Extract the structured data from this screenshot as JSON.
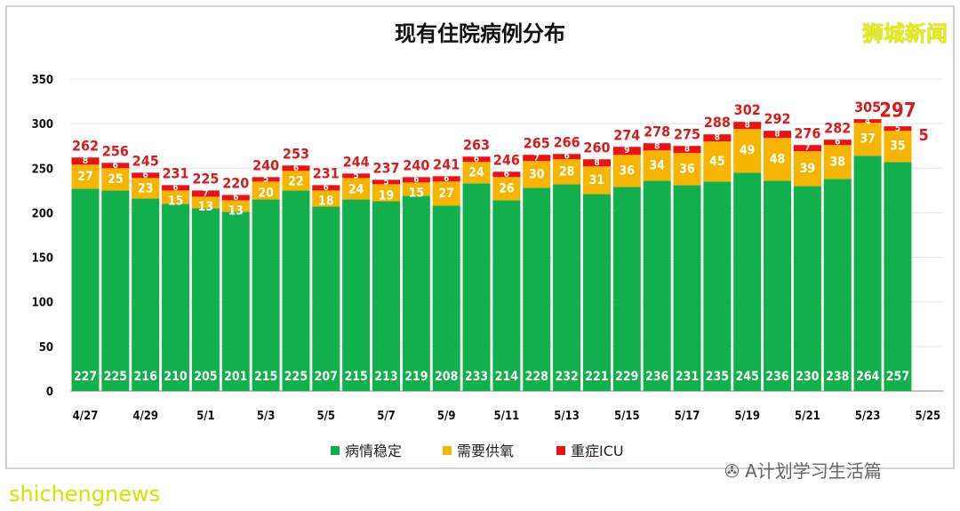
{
  "logo_text": "狮城新闻",
  "watermark_bottom": "shichengnews",
  "watermark_wechat": "A计划学习生活篇",
  "colors": {
    "stable": "#12b04c",
    "oxygen": "#f7b500",
    "icu": "#ee1111",
    "total_label": "#d61c1c"
  },
  "chart_data": {
    "type": "bar",
    "stacked": true,
    "title": "现有住院病例分布",
    "xlabel": "",
    "ylabel": "",
    "ylim": [
      0,
      350
    ],
    "yticks": [
      0,
      50,
      100,
      150,
      200,
      250,
      300,
      350
    ],
    "grid": true,
    "legend_position": "bottom",
    "categories": [
      "4/27",
      "4/28",
      "4/29",
      "4/30",
      "5/1",
      "5/2",
      "5/3",
      "5/4",
      "5/5",
      "5/6",
      "5/7",
      "5/8",
      "5/9",
      "5/10",
      "5/11",
      "5/12",
      "5/13",
      "5/14",
      "5/15",
      "5/16",
      "5/17",
      "5/18",
      "5/19",
      "5/20",
      "5/21",
      "5/22",
      "5/23",
      "5/24",
      "5/25"
    ],
    "xtick_labels": [
      "4/27",
      "4/29",
      "5/1",
      "5/3",
      "5/5",
      "5/7",
      "5/9",
      "5/11",
      "5/13",
      "5/15",
      "5/17",
      "5/19",
      "5/21",
      "5/23",
      "5/25"
    ],
    "series": [
      {
        "name": "病情稳定",
        "values": [
          227,
          225,
          216,
          210,
          205,
          201,
          215,
          225,
          207,
          215,
          213,
          219,
          208,
          233,
          214,
          228,
          232,
          221,
          229,
          236,
          231,
          235,
          245,
          236,
          230,
          238,
          264,
          257,
          null
        ]
      },
      {
        "name": "需要供氧",
        "values": [
          27,
          25,
          23,
          15,
          13,
          13,
          20,
          22,
          18,
          24,
          19,
          15,
          27,
          24,
          26,
          30,
          28,
          31,
          36,
          34,
          36,
          45,
          49,
          48,
          39,
          38,
          37,
          35,
          null
        ]
      },
      {
        "name": "重症ICU",
        "values": [
          8,
          6,
          6,
          6,
          7,
          6,
          5,
          6,
          6,
          5,
          5,
          6,
          6,
          6,
          6,
          7,
          6,
          8,
          9,
          8,
          8,
          8,
          8,
          8,
          7,
          6,
          4,
          5,
          null
        ]
      }
    ],
    "totals": [
      262,
      256,
      245,
      231,
      225,
      220,
      240,
      253,
      231,
      244,
      237,
      240,
      241,
      263,
      246,
      265,
      266,
      260,
      274,
      278,
      275,
      288,
      302,
      292,
      276,
      282,
      305,
      297,
      null
    ]
  }
}
